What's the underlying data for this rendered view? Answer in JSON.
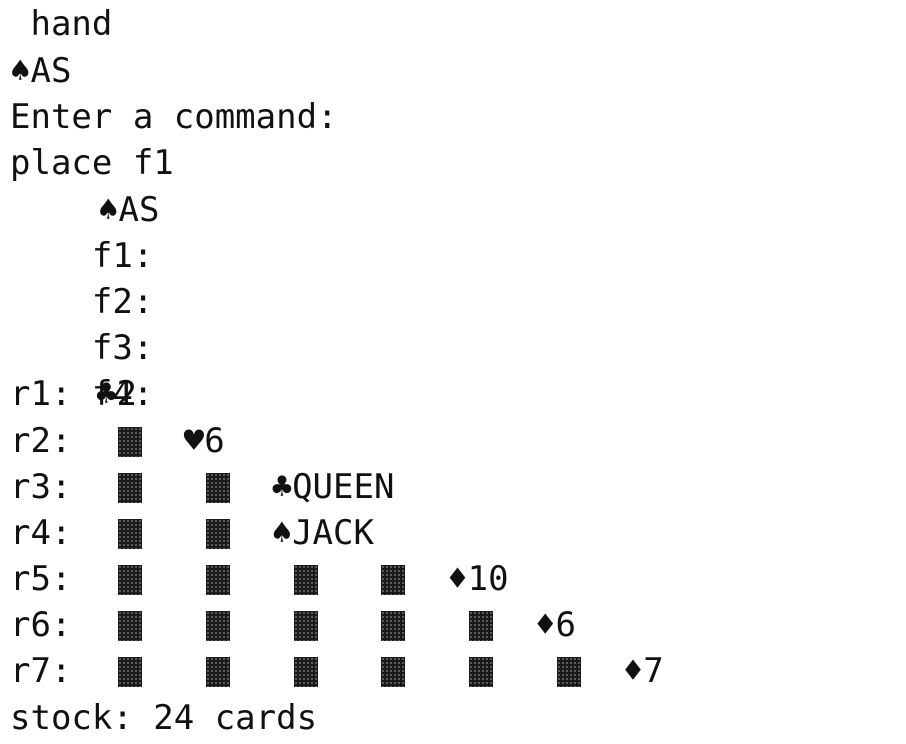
{
  "terminal": {
    "hand_label": " hand",
    "hand_card": "♠AS",
    "prompt": "Enter a command:",
    "command": "place f1",
    "foundations": [
      {
        "label": "f1:",
        "card": "♠AS"
      },
      {
        "label": "f2:",
        "card": ""
      },
      {
        "label": "f3:",
        "card": ""
      },
      {
        "label": "f4:",
        "card": ""
      }
    ],
    "rows": [
      {
        "label": "r1:",
        "facedown_count": 0,
        "faceup": "♣2"
      },
      {
        "label": "r2:",
        "facedown_count": 1,
        "faceup": "♥6"
      },
      {
        "label": "r3:",
        "facedown_count": 2,
        "faceup": "♣QUEEN"
      },
      {
        "label": "r4:",
        "facedown_count": 2,
        "faceup": "♠JACK"
      },
      {
        "label": "r5:",
        "facedown_count": 4,
        "faceup": "♦10"
      },
      {
        "label": "r6:",
        "facedown_count": 5,
        "faceup": "♦6"
      },
      {
        "label": "r7:",
        "facedown_count": 6,
        "faceup": "♦7"
      }
    ],
    "stock": "stock: 24 cards"
  }
}
